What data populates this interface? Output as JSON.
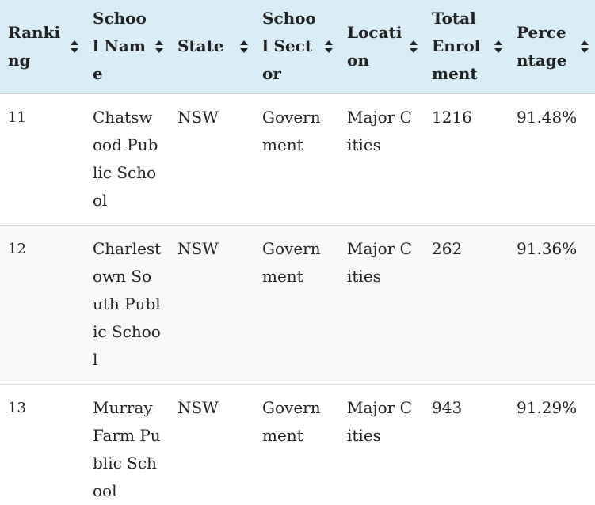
{
  "table": {
    "columns": [
      {
        "label": "Ranking"
      },
      {
        "label": "School Name"
      },
      {
        "label": "State"
      },
      {
        "label": "School Sector"
      },
      {
        "label": "Location"
      },
      {
        "label": "Total Enrolment"
      },
      {
        "label": "Percentage"
      }
    ],
    "rows": [
      {
        "ranking": "11",
        "school_name": "Chatswood Public School",
        "state": "NSW",
        "sector": "Government",
        "location": "Major Cities",
        "enrolment": "1216",
        "percentage": "91.48%"
      },
      {
        "ranking": "12",
        "school_name": "Charlestown South Public School",
        "state": "NSW",
        "sector": "Government",
        "location": "Major Cities",
        "enrolment": "262",
        "percentage": "91.36%"
      },
      {
        "ranking": "13",
        "school_name": "Murray Farm Public School",
        "state": "NSW",
        "sector": "Government",
        "location": "Major Cities",
        "enrolment": "943",
        "percentage": "91.29%"
      }
    ]
  },
  "icons": {
    "sort": "sort-icon"
  },
  "colors": {
    "header_bg": "#d9edf7",
    "row_alt_bg": "#f9f9f9",
    "text": "#222222"
  }
}
